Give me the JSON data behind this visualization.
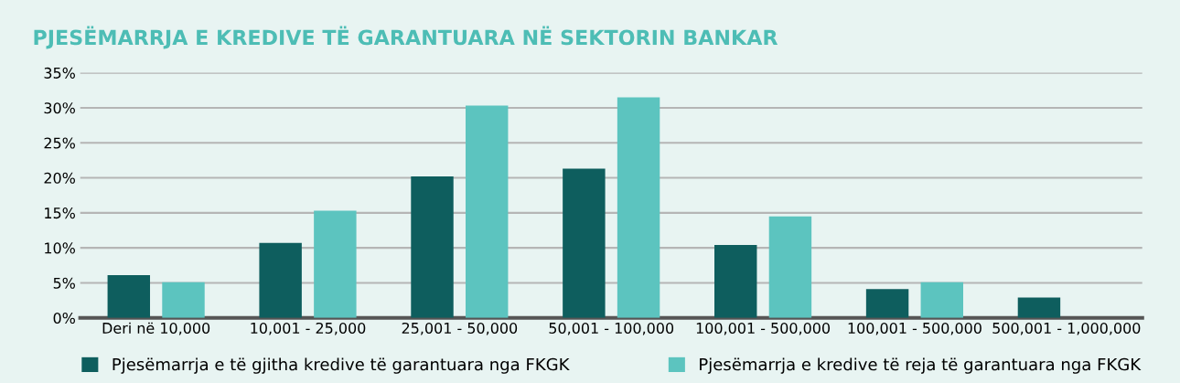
{
  "chart_data": {
    "type": "bar",
    "title": "PJESËMARRJA E KREDIVE TË GARANTUARA NË SEKTORIN BANKAR",
    "categories": [
      "Deri në 10,000",
      "10,001 - 25,000",
      "25,001 - 50,000",
      "50,001 - 100,000",
      "100,001 - 500,000",
      "100,001 - 500,000",
      "500,001 - 1,000,000"
    ],
    "series": [
      {
        "name": "Pjesëmarrja e të gjitha kredive të garantuara nga FKGK",
        "color": "#0e5e5e",
        "values": [
          6.1,
          10.7,
          20.2,
          21.3,
          10.4,
          4.1,
          2.9
        ]
      },
      {
        "name": "Pjesëmarrja e kredive të reja të garantuara nga FKGK",
        "color": "#5cc4bf",
        "values": [
          5.1,
          15.3,
          30.3,
          31.5,
          14.5,
          5.1,
          null
        ]
      }
    ],
    "ylim": [
      0,
      35
    ],
    "yticks": [
      {
        "value": 0,
        "label": "0%"
      },
      {
        "value": 5,
        "label": "5%"
      },
      {
        "value": 10,
        "label": "10%"
      },
      {
        "value": 15,
        "label": "15%"
      },
      {
        "value": 20,
        "label": "20%"
      },
      {
        "value": 25,
        "label": "25%"
      },
      {
        "value": 30,
        "label": "30%"
      },
      {
        "value": 35,
        "label": "35%"
      }
    ],
    "grid": "y",
    "legend": "bottom"
  }
}
